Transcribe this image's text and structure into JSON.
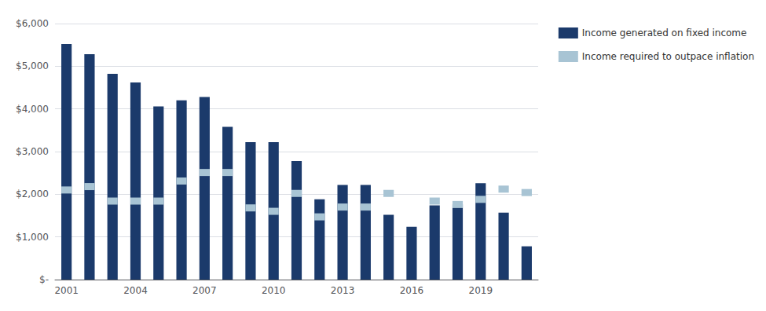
{
  "chart_data": {
    "type": "bar",
    "categories": [
      "2001",
      null,
      null,
      "2004",
      null,
      null,
      "2007",
      null,
      null,
      "2010",
      null,
      null,
      "2013",
      null,
      null,
      "2016",
      null,
      null,
      "2019",
      null,
      null
    ],
    "series": [
      {
        "name": "Income generated on fixed income",
        "type": "bar",
        "color": "#1b3a6b",
        "values": [
          5520,
          5280,
          4820,
          4620,
          4060,
          4200,
          4280,
          3580,
          3220,
          3220,
          2780,
          1880,
          2220,
          2220,
          1520,
          1240,
          1740,
          1760,
          2260,
          1570,
          780
        ]
      },
      {
        "name": "Income required to outpace inflation",
        "type": "scatter",
        "marker": "dash",
        "color": "#a8c4d4",
        "values": [
          2100,
          2180,
          1840,
          1840,
          1840,
          2310,
          2510,
          2510,
          1680,
          1600,
          2020,
          1470,
          1700,
          1700,
          2020,
          null,
          1840,
          1760,
          1880,
          2120,
          2040
        ]
      }
    ],
    "ylim": [
      0,
      6000
    ],
    "yticks": [
      {
        "value": 0,
        "label": "$-"
      },
      {
        "value": 1000,
        "label": "$1,000"
      },
      {
        "value": 2000,
        "label": "$2,000"
      },
      {
        "value": 3000,
        "label": "$3,000"
      },
      {
        "value": 4000,
        "label": "$4,000"
      },
      {
        "value": 5000,
        "label": "$5,000"
      },
      {
        "value": 6000,
        "label": "$6,000"
      }
    ],
    "grid": true,
    "legend": "upper right"
  }
}
